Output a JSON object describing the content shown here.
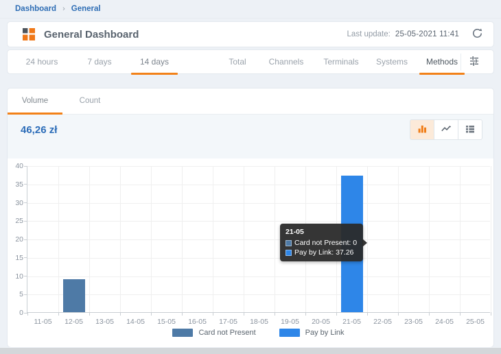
{
  "colors": {
    "accent_orange": "#f28118",
    "link_blue": "#2f6eb5",
    "value_blue": "#2b6cb8",
    "tooltip_bg": "#2a2a2a"
  },
  "breadcrumb": {
    "home": "Dashboard",
    "separator": "›",
    "current": "General"
  },
  "header": {
    "icon": "dashboard-tiles-icon",
    "title": "General Dashboard",
    "last_update_label": "Last update:",
    "last_update_value": "25-05-2021  11:41",
    "refresh_icon": "refresh-icon"
  },
  "tabs": {
    "items": [
      {
        "label": "24 hours",
        "active": false
      },
      {
        "label": "7 days",
        "active": false
      },
      {
        "label": "14 days",
        "active": true
      },
      {
        "label": "Total",
        "active": false
      },
      {
        "label": "Channels",
        "active": false
      },
      {
        "label": "Terminals",
        "active": false
      },
      {
        "label": "Systems",
        "active": false
      },
      {
        "label": "Methods",
        "active": true
      }
    ],
    "filter_icon": "tune-icon"
  },
  "panel": {
    "subtabs": [
      {
        "label": "Volume",
        "active": true
      },
      {
        "label": "Count",
        "active": false
      }
    ],
    "total_value": "46,26 zł",
    "view_buttons": [
      {
        "name": "bar-chart",
        "active": true
      },
      {
        "name": "line-chart",
        "active": false
      },
      {
        "name": "data-list",
        "active": false
      }
    ]
  },
  "tooltip": {
    "title": "21-05",
    "rows": [
      {
        "text": "Card not Present: 0",
        "color": "#4e7aa6"
      },
      {
        "text": "Pay by Link: 37.26",
        "color": "#2e86e8"
      }
    ]
  },
  "chart_data": {
    "type": "bar",
    "stacked": true,
    "title": "",
    "xlabel": "",
    "ylabel": "",
    "grid": true,
    "legend_position": "bottom",
    "categories": [
      "11-05",
      "12-05",
      "13-05",
      "14-05",
      "15-05",
      "16-05",
      "17-05",
      "18-05",
      "19-05",
      "20-05",
      "21-05",
      "22-05",
      "23-05",
      "24-05",
      "25-05"
    ],
    "series": [
      {
        "name": "Card not Present",
        "color": "#4e7aa6",
        "values": [
          0,
          9,
          0,
          0,
          0,
          0,
          0,
          0,
          0,
          0,
          0,
          0,
          0,
          0,
          0
        ]
      },
      {
        "name": "Pay by Link",
        "color": "#2e86e8",
        "values": [
          0,
          0,
          0,
          0,
          0,
          0,
          0,
          0,
          0,
          0,
          37.26,
          0,
          0,
          0,
          0
        ]
      }
    ],
    "ylim": [
      0,
      40
    ],
    "yticks": [
      0,
      5,
      10,
      15,
      20,
      25,
      30,
      35,
      40
    ]
  }
}
